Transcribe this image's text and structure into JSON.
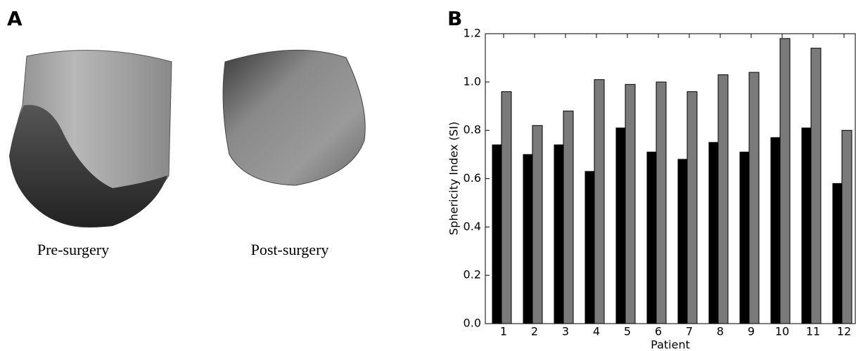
{
  "panel_a": {
    "label": "A",
    "captions": [
      "Pre-surgery",
      "Post-surgery"
    ]
  },
  "chart_data": {
    "type": "bar",
    "label": "B",
    "xlabel": "Patient",
    "ylabel": "Sphericity Index (SI)",
    "categories": [
      "1",
      "2",
      "3",
      "4",
      "5",
      "6",
      "7",
      "8",
      "9",
      "10",
      "11",
      "12"
    ],
    "series": [
      {
        "color": "#000000",
        "values": [
          0.74,
          0.7,
          0.74,
          0.63,
          0.81,
          0.71,
          0.68,
          0.75,
          0.71,
          0.77,
          0.81,
          0.58
        ]
      },
      {
        "color": "#7a7a7a",
        "values": [
          0.96,
          0.82,
          0.88,
          1.01,
          0.99,
          1.0,
          0.96,
          1.03,
          1.04,
          1.18,
          1.14,
          0.8
        ]
      }
    ],
    "ylim": [
      0,
      1.2
    ],
    "yticks": [
      {
        "value": 0,
        "label": "0.0"
      },
      0.2,
      0.4,
      0.6,
      0.8,
      {
        "value": 1,
        "label": "1.0"
      },
      1.2
    ]
  }
}
